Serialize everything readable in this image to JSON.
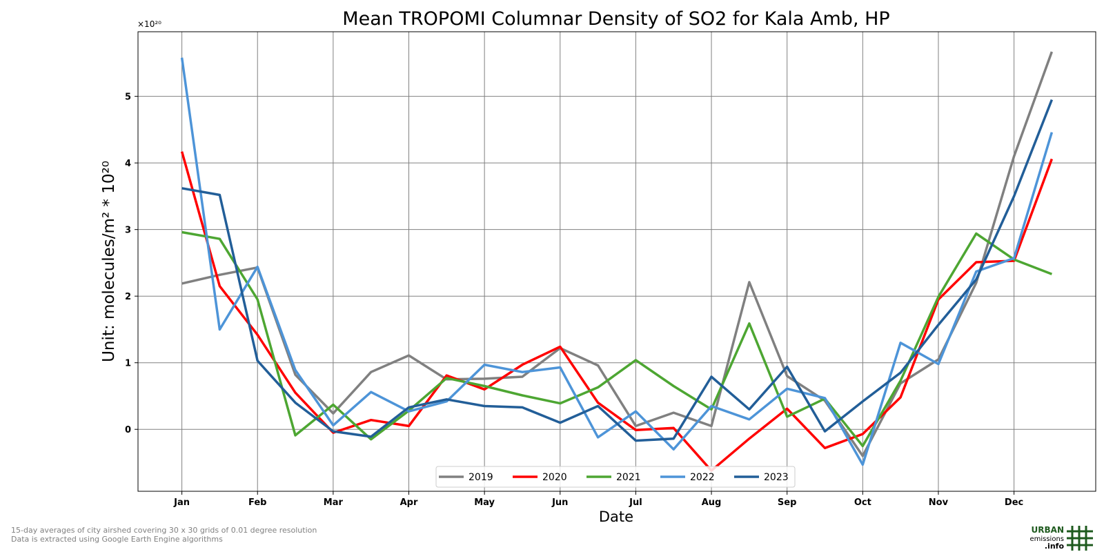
{
  "chart_data": {
    "type": "line",
    "title": "Mean TROPOMI Columnar Density of SO2 for Kala Amb, HP",
    "xlabel": "Date",
    "ylabel": "Unit: molecules/m² * 10²⁰",
    "offset_label": "×10²⁰",
    "x": [
      0,
      0.5,
      1,
      1.5,
      2,
      2.5,
      3,
      3.5,
      4,
      4.5,
      5,
      5.5,
      6,
      6.5,
      7,
      7.5,
      8,
      8.5,
      9,
      9.5,
      10,
      10.5,
      11,
      11.5
    ],
    "xlim": [
      -0.58,
      12.08
    ],
    "ylim": [
      -0.93,
      5.97
    ],
    "x_ticks": [
      {
        "value": 0,
        "label": "Jan"
      },
      {
        "value": 1,
        "label": "Feb"
      },
      {
        "value": 2,
        "label": "Mar"
      },
      {
        "value": 3,
        "label": "Apr"
      },
      {
        "value": 4,
        "label": "May"
      },
      {
        "value": 5,
        "label": "Jun"
      },
      {
        "value": 6,
        "label": "Jul"
      },
      {
        "value": 7,
        "label": "Aug"
      },
      {
        "value": 8,
        "label": "Sep"
      },
      {
        "value": 9,
        "label": "Oct"
      },
      {
        "value": 10,
        "label": "Nov"
      },
      {
        "value": 11,
        "label": "Dec"
      }
    ],
    "y_ticks": [
      {
        "value": 0,
        "label": "0"
      },
      {
        "value": 1,
        "label": "1"
      },
      {
        "value": 2,
        "label": "2"
      },
      {
        "value": 3,
        "label": "3"
      },
      {
        "value": 4,
        "label": "4"
      },
      {
        "value": 5,
        "label": "5"
      }
    ],
    "grid": true,
    "legend_position": "bottom-center",
    "series": [
      {
        "name": "2019",
        "color": "#808080",
        "values": [
          2.19,
          2.32,
          2.43,
          0.82,
          0.24,
          0.86,
          1.11,
          0.75,
          0.76,
          0.79,
          1.22,
          0.96,
          0.05,
          0.25,
          0.05,
          2.21,
          0.8,
          0.43,
          -0.4,
          0.69,
          1.05,
          2.2,
          4.1,
          5.67
        ]
      },
      {
        "name": "2020",
        "color": "#ff0000",
        "values": [
          4.17,
          2.15,
          1.42,
          0.55,
          -0.05,
          0.14,
          0.05,
          0.81,
          0.6,
          0.97,
          1.24,
          0.4,
          -0.01,
          0.02,
          -0.62,
          -0.14,
          0.31,
          -0.28,
          -0.07,
          0.48,
          1.95,
          2.51,
          2.53,
          4.06
        ]
      },
      {
        "name": "2021",
        "color": "#4da632",
        "values": [
          2.96,
          2.86,
          1.95,
          -0.09,
          0.37,
          -0.15,
          0.28,
          0.77,
          0.65,
          0.51,
          0.39,
          0.63,
          1.04,
          0.65,
          0.3,
          1.59,
          0.19,
          0.46,
          -0.25,
          0.73,
          1.99,
          2.94,
          2.55,
          2.33
        ]
      },
      {
        "name": "2022",
        "color": "#4d94d8",
        "values": [
          5.58,
          1.5,
          2.44,
          0.89,
          0.06,
          0.56,
          0.27,
          0.42,
          0.97,
          0.86,
          0.93,
          -0.12,
          0.27,
          -0.3,
          0.35,
          0.15,
          0.61,
          0.47,
          -0.53,
          1.3,
          0.98,
          2.37,
          2.57,
          4.46
        ]
      },
      {
        "name": "2023",
        "color": "#225e98",
        "values": [
          3.62,
          3.52,
          1.03,
          0.4,
          -0.03,
          -0.11,
          0.33,
          0.45,
          0.35,
          0.33,
          0.1,
          0.35,
          -0.17,
          -0.14,
          0.79,
          0.3,
          0.94,
          -0.03,
          0.42,
          0.85,
          1.57,
          2.25,
          3.5,
          4.95
        ]
      }
    ]
  },
  "footnotes": {
    "line1": "15-day averages of city airshed covering 30 x 30 grids of 0.01 degree resolution",
    "line2": "Data is extracted using Google Earth Engine algorithms"
  },
  "logo": {
    "line1": "URBAN",
    "line2": "emissions",
    "line3": ".info",
    "color": "#1e5a1e"
  }
}
